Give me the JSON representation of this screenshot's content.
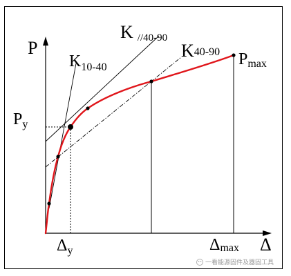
{
  "axes": {
    "y_label": "P",
    "x_label": "Δ",
    "py_label": "P",
    "py_sub": "y",
    "dy_label": "Δ",
    "dy_sub": "y",
    "dmax_label": "Δ",
    "dmax_sub": "max"
  },
  "labels": {
    "k1040_main": "K",
    "k1040_sub": "10-40",
    "kpar_main": "K",
    "kpar_sub": "//40-90",
    "k4090_main": "K",
    "k4090_sub": "40-90",
    "pmax_main": "P",
    "pmax_sub": "max"
  },
  "watermark": {
    "text": "一看能源固件及器固工具"
  },
  "colors": {
    "curve": "#e0161b",
    "line": "#000000"
  }
}
